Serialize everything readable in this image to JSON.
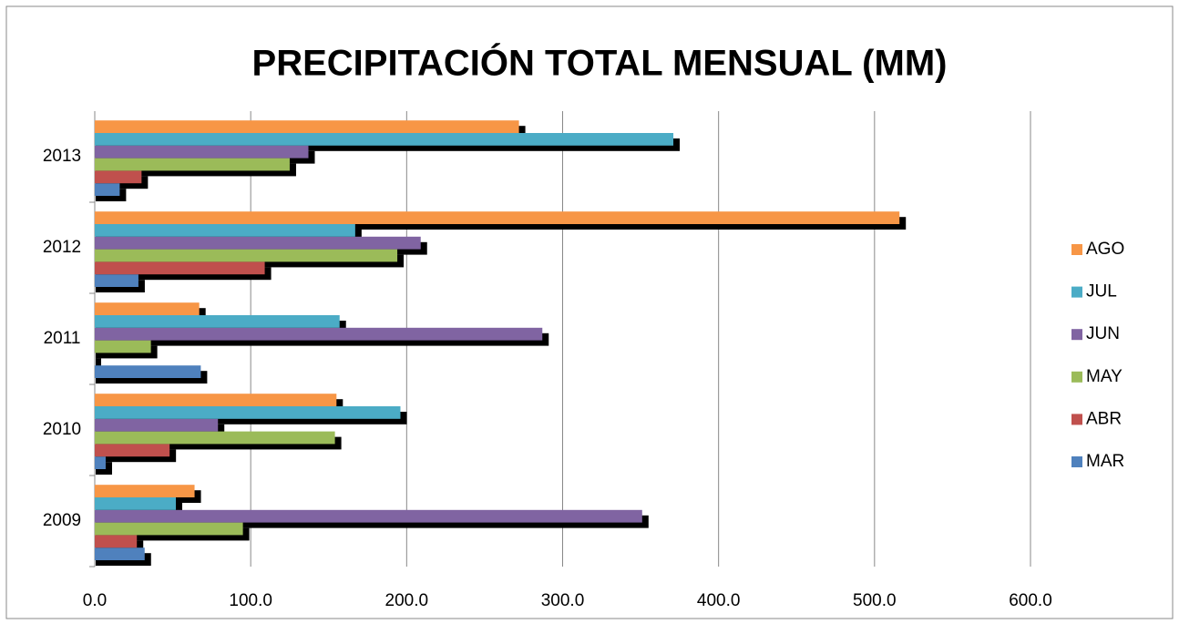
{
  "chart_data": {
    "type": "bar",
    "orientation": "horizontal",
    "title": "PRECIPITACIÓN TOTAL MENSUAL (MM)",
    "categories": [
      "2009",
      "2010",
      "2011",
      "2012",
      "2013"
    ],
    "series": [
      {
        "name": "MAR",
        "color": "#4f81bd",
        "values": [
          32,
          7,
          68,
          28,
          16
        ]
      },
      {
        "name": "ABR",
        "color": "#c0504d",
        "values": [
          27,
          48,
          0,
          109,
          30
        ]
      },
      {
        "name": "MAY",
        "color": "#9bbb59",
        "values": [
          95,
          154,
          36,
          194,
          125
        ]
      },
      {
        "name": "JUN",
        "color": "#8064a2",
        "values": [
          351,
          79,
          287,
          209,
          137
        ]
      },
      {
        "name": "JUL",
        "color": "#4bacc6",
        "values": [
          52,
          196,
          157,
          167,
          371
        ]
      },
      {
        "name": "AGO",
        "color": "#f79646",
        "values": [
          64,
          155,
          67,
          516,
          272
        ]
      }
    ],
    "xlim": [
      0,
      600
    ],
    "xticks": [
      {
        "value": 0,
        "label": "0.0"
      },
      {
        "value": 100,
        "label": "100.0"
      },
      {
        "value": 200,
        "label": "200.0"
      },
      {
        "value": 300,
        "label": "300.0"
      },
      {
        "value": 400,
        "label": "400.0"
      },
      {
        "value": 500,
        "label": "500.0"
      },
      {
        "value": 600,
        "label": "600.0"
      }
    ],
    "grid": true,
    "legend": "right"
  }
}
